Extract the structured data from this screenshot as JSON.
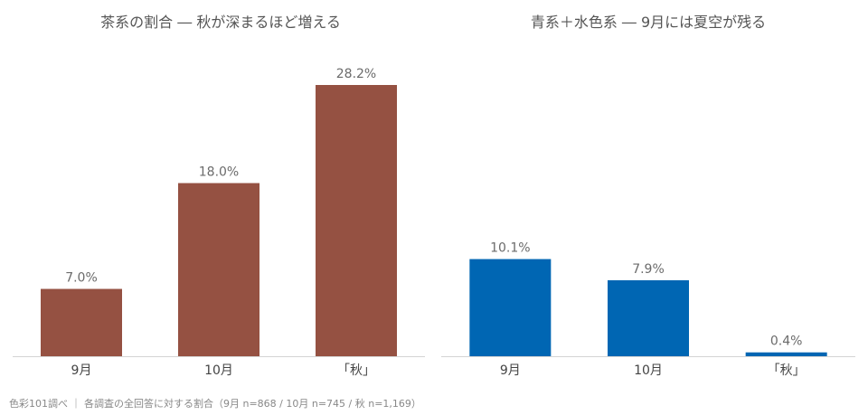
{
  "chart_data": [
    {
      "type": "bar",
      "title": "茶系の割合 ― 秋が深まるほど増える",
      "categories": [
        "9月",
        "10月",
        "「秋」"
      ],
      "values": [
        7.0,
        18.0,
        28.2
      ],
      "value_labels": [
        "7.0%",
        "18.0%",
        "28.2%"
      ],
      "ylim": [
        0,
        28.2
      ],
      "grid": false,
      "color": "#955142"
    },
    {
      "type": "bar",
      "title": "青系＋水色系 ― 9月には夏空が残る",
      "categories": [
        "9月",
        "10月",
        "「秋」"
      ],
      "values": [
        10.1,
        7.9,
        0.4
      ],
      "value_labels": [
        "10.1%",
        "7.9%",
        "0.4%"
      ],
      "ylim": [
        0,
        28.2
      ],
      "grid": false,
      "color": "#0066b3"
    }
  ],
  "footnote": "色彩101調べ ｜ 各調査の全回答に対する割合（9月 n=868 / 10月 n=745 / 秋 n=1,169）"
}
